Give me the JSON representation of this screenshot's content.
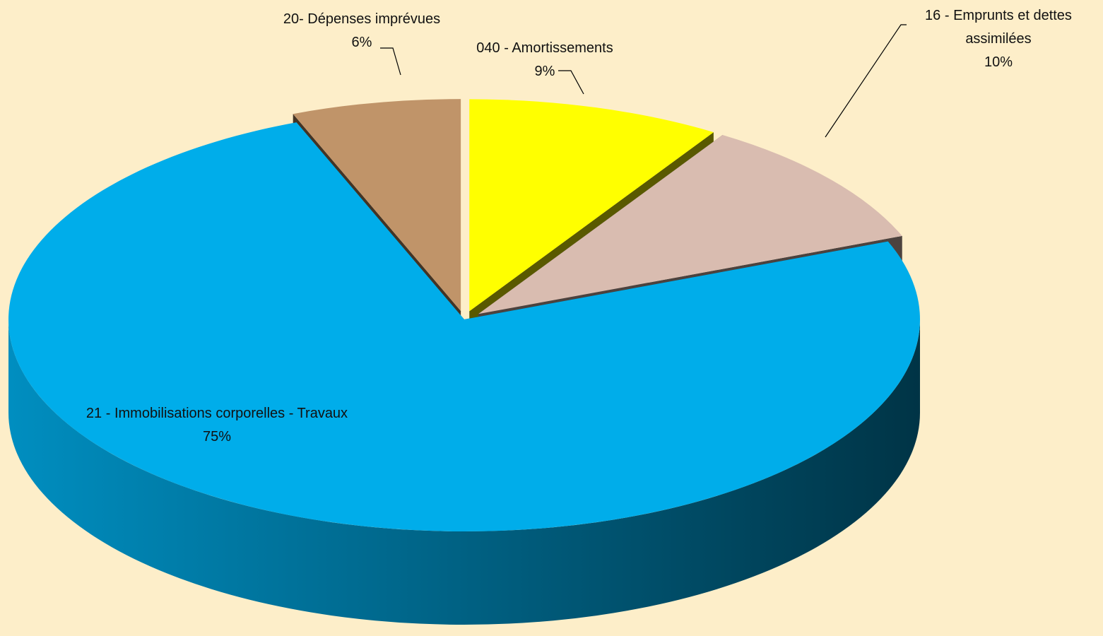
{
  "chart_data": {
    "type": "pie3d",
    "categories": [
      "040 - Amortissements",
      "16 - Emprunts et dettes assimilées",
      "21 - Immobilisations corporelles - Travaux",
      "20- Dépenses imprévues"
    ],
    "values": [
      9,
      10,
      75,
      6
    ],
    "value_labels": [
      "9%",
      "10%",
      "75%",
      "6%"
    ],
    "colors": [
      "#ffff00",
      "#d9bcb0",
      "#00adea",
      "#c09469"
    ]
  }
}
